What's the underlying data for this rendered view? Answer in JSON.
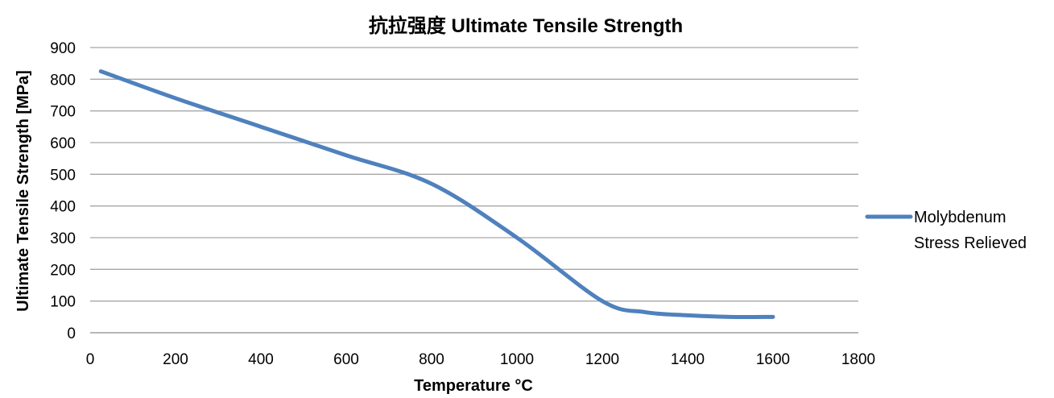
{
  "chart_data": {
    "type": "line",
    "title": "抗拉强度  Ultimate Tensile Strength",
    "xlabel": "Temperature °C",
    "ylabel": "Ultimate Tensile Strength [MPa]",
    "xlim": [
      0,
      1800
    ],
    "ylim": [
      0,
      900
    ],
    "x_ticks": [
      "0",
      "200",
      "400",
      "600",
      "800",
      "1000",
      "1200",
      "1400",
      "1600",
      "1800"
    ],
    "y_ticks": [
      "0",
      "100",
      "200",
      "300",
      "400",
      "500",
      "600",
      "700",
      "800",
      "900"
    ],
    "grid": "horizontal",
    "legend_position": "right",
    "series": [
      {
        "name": "Molybdenum Stress Relieved",
        "legend_lines": [
          "Molybdenum",
          "Stress Relieved"
        ],
        "color": "#4f81bd",
        "x": [
          25,
          200,
          400,
          600,
          800,
          1000,
          1200,
          1300,
          1400,
          1500,
          1600
        ],
        "y": [
          825,
          740,
          650,
          560,
          470,
          300,
          100,
          65,
          55,
          50,
          50
        ]
      }
    ]
  }
}
